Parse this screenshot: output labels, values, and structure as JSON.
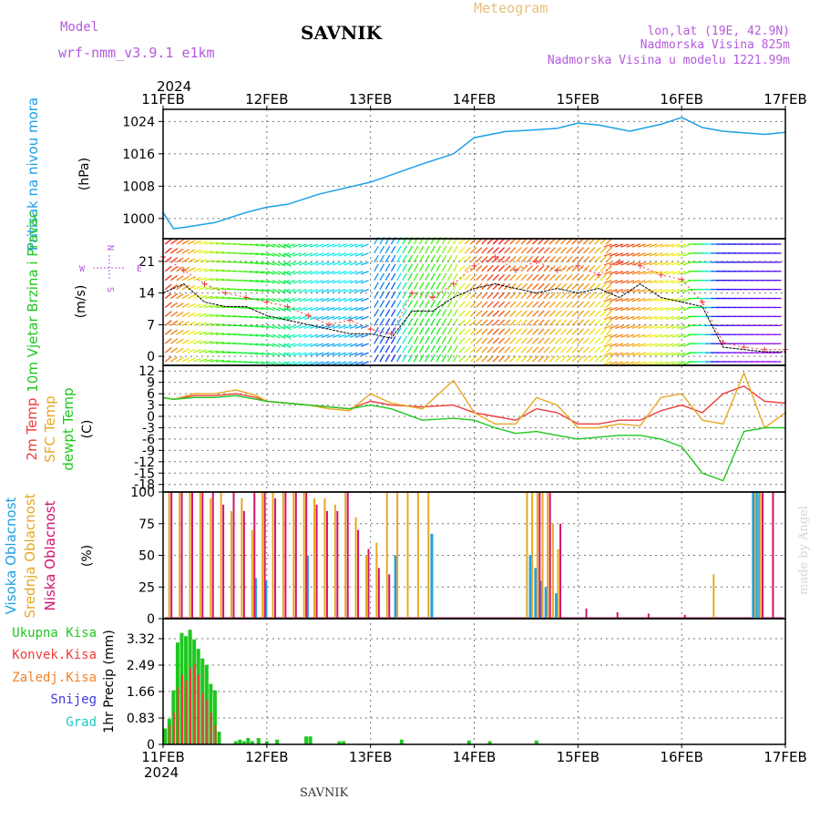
{
  "header": {
    "model_label": "Model",
    "model_value": "wrf-nmm_v3.9.1  e1km",
    "station": "SAVNIK",
    "product": "Meteogram",
    "lonlat": "lon,lat (19E, 42.9N)",
    "elevation": "Nadmorska Visina 825m",
    "model_elevation": "Nadmorska Visina u modelu 1221.99m",
    "year": "2024",
    "footer_station": "SAVNIK",
    "watermark": "made by Angel"
  },
  "time_axis": {
    "labels": [
      "11FEB",
      "12FEB",
      "13FEB",
      "14FEB",
      "15FEB",
      "16FEB",
      "17FEB"
    ]
  },
  "colors": {
    "pressure": "#1ea0e6",
    "temp2m": "#f03c3c",
    "sfc_temp": "#e6a823",
    "dewpt": "#1ec81e",
    "high_cloud": "#1ea0e6",
    "mid_cloud": "#e6a823",
    "low_cloud": "#d2146e",
    "total_precip": "#1ec81e",
    "conv_precip": "#f03c3c",
    "frozen_precip": "#f08228",
    "snow": "#3c3cdc",
    "grad": "#1ec8c8",
    "wind_label": "#1ec81e",
    "pressure_label": "#1ea0e6",
    "station_label": "#b45adc"
  },
  "chart_data": [
    {
      "type": "line",
      "panel": "pressure",
      "ylabel_left": "Pritisak na nivou mora",
      "ylabel": "(hPa)",
      "yticks": [
        1000,
        1008,
        1016,
        1024
      ],
      "ylim": [
        995,
        1027
      ],
      "grid": true,
      "series": [
        {
          "x": [
            0,
            0.1,
            0.2,
            0.5,
            0.8,
            1.0,
            1.2,
            1.5,
            1.8,
            2.0,
            2.5,
            2.8,
            3.0,
            3.3,
            3.5,
            3.8,
            4.0,
            4.2,
            4.5,
            4.8,
            5.0,
            5.2,
            5.4,
            5.6,
            5.8,
            6.0
          ],
          "values": [
            1001.5,
            997.5,
            997.8,
            999,
            1001.5,
            1002.8,
            1003.5,
            1006,
            1007.8,
            1009,
            1013.5,
            1016,
            1020,
            1021.5,
            1021.8,
            1022.3,
            1023.6,
            1023.1,
            1021.6,
            1023.3,
            1025,
            1022.5,
            1021.6,
            1021.2,
            1020.8,
            1021.3
          ]
        }
      ]
    },
    {
      "type": "line",
      "panel": "wind",
      "ylabel_left": "10m Vjetar Brzina i Pravac",
      "ylabel": "(m/s)",
      "compass": [
        "N",
        "W",
        "E",
        "S"
      ],
      "yticks": [
        0,
        7,
        14,
        21
      ],
      "ylim": [
        -2,
        26
      ],
      "grid": true,
      "series": [
        {
          "name": "speed",
          "x": [
            0,
            0.2,
            0.4,
            0.6,
            0.8,
            1.0,
            1.2,
            1.4,
            1.6,
            1.8,
            2.0,
            2.2,
            2.4,
            2.6,
            2.8,
            3.0,
            3.2,
            3.4,
            3.6,
            3.8,
            4.0,
            4.2,
            4.4,
            4.6,
            4.8,
            5.0,
            5.2,
            5.4,
            5.6,
            5.8,
            6.0
          ],
          "values": [
            14,
            16,
            12,
            11,
            11,
            9,
            8,
            7,
            6,
            5,
            5,
            4,
            10,
            10,
            13,
            15,
            16,
            15,
            14,
            15,
            14,
            15,
            13,
            16,
            13,
            12,
            11,
            2,
            1.5,
            1,
            1
          ]
        },
        {
          "name": "gust",
          "x": [
            0,
            0.2,
            0.4,
            0.6,
            0.8,
            1.0,
            1.2,
            1.4,
            1.6,
            1.8,
            2.0,
            2.2,
            2.4,
            2.6,
            2.8,
            3.0,
            3.2,
            3.4,
            3.6,
            3.8,
            4.0,
            4.2,
            4.4,
            4.6,
            4.8,
            5.0,
            5.2,
            5.4,
            5.6,
            5.8,
            6.0
          ],
          "values": [
            22,
            19,
            16,
            14,
            13,
            12,
            11,
            9,
            7,
            8,
            6,
            5,
            14,
            13,
            16,
            20,
            22,
            19,
            21,
            19,
            20,
            18,
            21,
            20,
            18,
            17,
            12,
            3,
            2,
            1.5,
            1.5
          ]
        }
      ]
    },
    {
      "type": "line",
      "panel": "temperature",
      "ylabel_left": [
        "2m Temp",
        "SFC Temp",
        "dewpt Temp"
      ],
      "ylabel": "(C)",
      "yticks": [
        12,
        9,
        6,
        3,
        0,
        -3,
        -6,
        -9,
        -12,
        -15,
        -18
      ],
      "ylim": [
        -20,
        13.5
      ],
      "grid": true,
      "series": [
        {
          "name": "2m Temp",
          "x": [
            0,
            0.1,
            0.3,
            0.5,
            0.7,
            0.9,
            1.0,
            1.2,
            1.4,
            1.6,
            1.8,
            2.0,
            2.2,
            2.5,
            2.8,
            3.0,
            3.2,
            3.4,
            3.6,
            3.8,
            4.0,
            4.2,
            4.4,
            4.6,
            4.8,
            5.0,
            5.2,
            5.4,
            5.6,
            5.8,
            6.0
          ],
          "values": [
            5,
            4.5,
            5.5,
            5.5,
            6,
            5,
            4,
            3.5,
            3,
            2.5,
            2,
            4,
            3,
            2.5,
            3,
            1,
            0,
            -1,
            2,
            1,
            -2,
            -2,
            -1,
            -1,
            1.5,
            3,
            1,
            6,
            8,
            4,
            3.5
          ]
        },
        {
          "name": "SFC Temp",
          "x": [
            0,
            0.1,
            0.3,
            0.5,
            0.7,
            0.9,
            1.0,
            1.2,
            1.4,
            1.6,
            1.8,
            2.0,
            2.2,
            2.5,
            2.8,
            3.0,
            3.2,
            3.4,
            3.6,
            3.8,
            4.0,
            4.2,
            4.4,
            4.6,
            4.8,
            5.0,
            5.2,
            5.4,
            5.6,
            5.8,
            6.0
          ],
          "values": [
            5,
            4.5,
            6,
            6,
            7,
            5.5,
            4,
            3.5,
            3,
            2,
            1.5,
            6,
            3.5,
            2,
            9.5,
            1,
            -2,
            -2,
            5,
            3,
            -3,
            -3,
            -2,
            -2.5,
            5,
            6,
            -1,
            -2,
            11.5,
            -3,
            1
          ]
        },
        {
          "name": "dewpt Temp",
          "x": [
            0,
            0.1,
            0.3,
            0.5,
            0.7,
            0.9,
            1.0,
            1.2,
            1.4,
            1.6,
            1.8,
            2.0,
            2.2,
            2.5,
            2.8,
            3.0,
            3.2,
            3.4,
            3.6,
            3.8,
            4.0,
            4.2,
            4.4,
            4.6,
            4.8,
            5.0,
            5.2,
            5.4,
            5.6,
            5.8,
            6.0
          ],
          "values": [
            5,
            4.5,
            5,
            5,
            5.5,
            4.5,
            4,
            3.5,
            3,
            2.5,
            2,
            3,
            2,
            -1,
            -0.5,
            -1,
            -3,
            -4.5,
            -4,
            -5,
            -6,
            -5.5,
            -5,
            -5,
            -6,
            -8,
            -15,
            -17,
            -4,
            -3,
            -3
          ]
        }
      ]
    },
    {
      "type": "bar",
      "panel": "cloud",
      "ylabel_left": [
        "Visoka Oblacnost",
        "Srednja Oblacnost",
        "Niska Oblacnost"
      ],
      "ylabel": "(%)",
      "yticks": [
        0,
        25,
        50,
        75,
        100
      ],
      "ylim": [
        0,
        100
      ],
      "grid": true,
      "series": [
        {
          "name": "Visoka Oblacnost",
          "x": [
            0.9,
            1.0,
            1.4,
            2.25,
            2.6,
            3.55,
            3.6,
            3.65,
            3.7,
            3.8,
            5.7,
            5.73,
            5.76
          ],
          "values": [
            32,
            30,
            50,
            50,
            67,
            50,
            40,
            30,
            25,
            20,
            100,
            100,
            100
          ]
        },
        {
          "name": "Srednja Oblacnost",
          "x": [
            0.05,
            0.15,
            0.25,
            0.35,
            0.45,
            0.55,
            0.65,
            0.75,
            0.85,
            0.95,
            1.05,
            1.15,
            1.25,
            1.35,
            1.45,
            1.55,
            1.65,
            1.75,
            1.85,
            1.95,
            2.05,
            2.15,
            2.25,
            2.35,
            2.45,
            2.55,
            3.5,
            3.55,
            3.6,
            3.65,
            3.7,
            3.75,
            3.8,
            5.3,
            5.7,
            5.75
          ],
          "values": [
            100,
            100,
            100,
            100,
            95,
            100,
            85,
            95,
            70,
            100,
            100,
            100,
            100,
            100,
            95,
            95,
            90,
            100,
            80,
            50,
            60,
            100,
            100,
            100,
            100,
            100,
            100,
            100,
            100,
            100,
            100,
            75,
            55,
            35,
            100,
            100
          ]
        },
        {
          "name": "Niska Oblacnost",
          "x": [
            0.05,
            0.15,
            0.25,
            0.35,
            0.45,
            0.55,
            0.65,
            0.75,
            0.85,
            0.95,
            1.05,
            1.15,
            1.25,
            1.35,
            1.45,
            1.55,
            1.65,
            1.75,
            1.85,
            1.95,
            2.05,
            2.15,
            3.6,
            3.7,
            3.8,
            4.05,
            4.35,
            4.65,
            5.0,
            5.75,
            5.85
          ],
          "values": [
            100,
            100,
            100,
            100,
            100,
            90,
            100,
            85,
            100,
            100,
            95,
            100,
            100,
            100,
            90,
            85,
            85,
            100,
            70,
            55,
            40,
            35,
            100,
            100,
            75,
            8,
            5,
            4,
            3,
            100,
            100
          ]
        }
      ]
    },
    {
      "type": "bar",
      "panel": "precipitation",
      "ylabel_left": [
        "Ukupna Kisa",
        "Konvek.Kisa",
        "Zaledj.Kisa",
        "Snijeg",
        "Grad"
      ],
      "ylabel": "1hr Precip (mm)",
      "yticks": [
        0,
        0.83,
        1.66,
        2.49,
        3.32
      ],
      "ylim": [
        0,
        3.95
      ],
      "grid": true,
      "series": [
        {
          "name": "Ukupna Kisa",
          "x": [
            0.02,
            0.06,
            0.1,
            0.14,
            0.18,
            0.22,
            0.26,
            0.3,
            0.34,
            0.38,
            0.42,
            0.46,
            0.5,
            0.54,
            0.7,
            0.74,
            0.78,
            0.82,
            0.86,
            0.92,
            1.0,
            1.1,
            1.38,
            1.42,
            1.7,
            1.74,
            2.3,
            2.95,
            3.15,
            3.6
          ],
          "values": [
            0.5,
            0.8,
            1.7,
            3.2,
            3.5,
            3.4,
            3.6,
            3.3,
            3.0,
            2.7,
            2.5,
            1.9,
            1.7,
            0.4,
            0.1,
            0.15,
            0.1,
            0.2,
            0.1,
            0.2,
            0.1,
            0.15,
            0.25,
            0.25,
            0.1,
            0.1,
            0.15,
            0.12,
            0.1,
            0.12
          ]
        },
        {
          "name": "Konvek.Kisa",
          "x": [
            0.06,
            0.1,
            0.14,
            0.18,
            0.22,
            0.26,
            0.3,
            0.34,
            0.38,
            0.42,
            0.46,
            0.5
          ],
          "values": [
            0.6,
            1.0,
            1.8,
            2.2,
            2.0,
            2.4,
            2.5,
            2.2,
            1.6,
            1.4,
            1.0,
            0.6
          ]
        }
      ]
    }
  ]
}
